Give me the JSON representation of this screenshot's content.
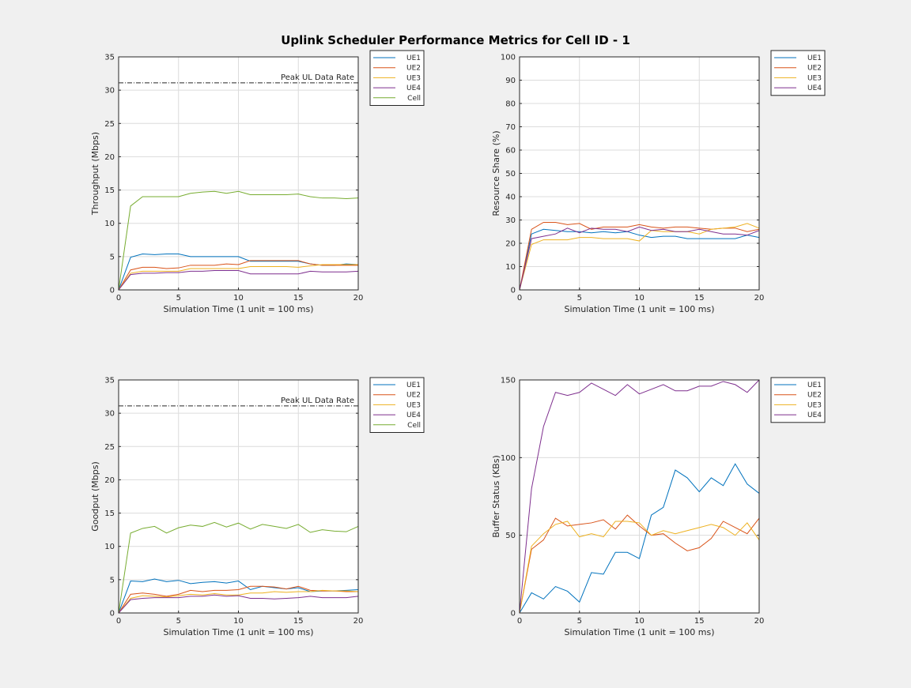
{
  "figure_title": "Uplink Scheduler Performance Metrics for Cell ID - 1",
  "colors": {
    "UE1": "#0072BD",
    "UE2": "#D95319",
    "UE3": "#EDB120",
    "UE4": "#7E2F8E",
    "Cell": "#77AC30",
    "background": "#f0f0f0"
  },
  "chart_data": [
    {
      "type": "line",
      "id": "throughput",
      "title": "",
      "xlabel": "Simulation Time (1 unit = 100 ms)",
      "ylabel": "Throughput (Mbps)",
      "xlim": [
        0,
        20
      ],
      "ylim": [
        0,
        35
      ],
      "xticks": [
        0,
        5,
        10,
        15,
        20
      ],
      "yticks": [
        0,
        5,
        10,
        15,
        20,
        25,
        30,
        35
      ],
      "grid": true,
      "legend_placement": "outside-top-right",
      "reference_line": {
        "label": "Peak UL Data Rate",
        "value": 31.1,
        "style": "dash-dot"
      },
      "x": [
        0,
        1,
        2,
        3,
        4,
        5,
        6,
        7,
        8,
        9,
        10,
        11,
        12,
        13,
        14,
        15,
        16,
        17,
        18,
        19,
        20
      ],
      "series": [
        {
          "name": "UE1",
          "values": [
            0,
            4.9,
            5.4,
            5.3,
            5.4,
            5.4,
            5,
            5,
            5,
            5,
            5,
            4.3,
            4.3,
            4.3,
            4.3,
            4.3,
            3.9,
            3.7,
            3.7,
            3.9,
            3.8
          ]
        },
        {
          "name": "UE2",
          "values": [
            0,
            3,
            3.4,
            3.4,
            3.2,
            3.3,
            3.7,
            3.7,
            3.7,
            3.9,
            3.8,
            4.4,
            4.4,
            4.4,
            4.4,
            4.4,
            3.9,
            3.7,
            3.7,
            3.7,
            3.7
          ]
        },
        {
          "name": "UE3",
          "values": [
            0,
            2.5,
            2.8,
            2.8,
            2.8,
            2.8,
            3.2,
            3.2,
            3.2,
            3.2,
            3.2,
            3.5,
            3.5,
            3.5,
            3.5,
            3.4,
            3.6,
            3.8,
            3.8,
            3.8,
            3.8
          ]
        },
        {
          "name": "UE4",
          "values": [
            0,
            2.3,
            2.5,
            2.5,
            2.6,
            2.6,
            2.8,
            2.8,
            2.9,
            2.9,
            2.9,
            2.4,
            2.4,
            2.4,
            2.4,
            2.4,
            2.8,
            2.7,
            2.7,
            2.7,
            2.8
          ]
        },
        {
          "name": "Cell",
          "values": [
            0,
            12.6,
            14,
            14,
            14,
            14,
            14.5,
            14.7,
            14.8,
            14.5,
            14.8,
            14.3,
            14.3,
            14.3,
            14.3,
            14.4,
            14,
            13.8,
            13.8,
            13.7,
            13.8
          ]
        }
      ]
    },
    {
      "type": "line",
      "id": "resource_share",
      "title": "",
      "xlabel": "Simulation Time (1 unit = 100 ms)",
      "ylabel": "Resource Share (%)",
      "xlim": [
        0,
        20
      ],
      "ylim": [
        0,
        100
      ],
      "xticks": [
        0,
        5,
        10,
        15,
        20
      ],
      "yticks": [
        0,
        10,
        20,
        30,
        40,
        50,
        60,
        70,
        80,
        90,
        100
      ],
      "grid": true,
      "legend_placement": "outside-top-right",
      "x": [
        0,
        1,
        2,
        3,
        4,
        5,
        6,
        7,
        8,
        9,
        10,
        11,
        12,
        13,
        14,
        15,
        16,
        17,
        18,
        19,
        20
      ],
      "series": [
        {
          "name": "UE1",
          "values": [
            0,
            24,
            26,
            25.5,
            25,
            25,
            24.5,
            25,
            24.5,
            25,
            23.5,
            22.5,
            23,
            23,
            22,
            22,
            22,
            22,
            22,
            23.5,
            22.5
          ]
        },
        {
          "name": "UE2",
          "values": [
            0,
            26,
            29,
            29,
            28,
            28.5,
            26,
            27,
            27,
            27,
            28,
            27,
            26.5,
            27,
            27,
            26.5,
            26,
            26.5,
            26.5,
            25,
            26
          ]
        },
        {
          "name": "UE3",
          "values": [
            0,
            19.5,
            21.5,
            21.5,
            21.5,
            22.5,
            22.5,
            22,
            22,
            22,
            21,
            25.5,
            25,
            25,
            25,
            24,
            26,
            26.5,
            27,
            28.5,
            26.5
          ]
        },
        {
          "name": "UE4",
          "values": [
            0,
            22,
            23,
            24,
            26.5,
            24.5,
            26.5,
            26,
            26,
            25,
            27,
            25.5,
            26,
            25,
            25,
            26,
            25,
            24,
            24,
            23.5,
            25.5
          ]
        }
      ]
    },
    {
      "type": "line",
      "id": "goodput",
      "title": "",
      "xlabel": "Simulation Time (1 unit = 100 ms)",
      "ylabel": "Goodput (Mbps)",
      "xlim": [
        0,
        20
      ],
      "ylim": [
        0,
        35
      ],
      "xticks": [
        0,
        5,
        10,
        15,
        20
      ],
      "yticks": [
        0,
        5,
        10,
        15,
        20,
        25,
        30,
        35
      ],
      "grid": true,
      "legend_placement": "outside-top-right",
      "reference_line": {
        "label": "Peak UL Data Rate",
        "value": 31.1,
        "style": "dash-dot"
      },
      "x": [
        0,
        1,
        2,
        3,
        4,
        5,
        6,
        7,
        8,
        9,
        10,
        11,
        12,
        13,
        14,
        15,
        16,
        17,
        18,
        19,
        20
      ],
      "series": [
        {
          "name": "UE1",
          "values": [
            0,
            4.8,
            4.7,
            5.1,
            4.7,
            4.9,
            4.4,
            4.6,
            4.7,
            4.5,
            4.8,
            3.5,
            4,
            3.8,
            3.6,
            3.8,
            3.2,
            3.3,
            3.3,
            3.4,
            3.5
          ]
        },
        {
          "name": "UE2",
          "values": [
            0,
            2.8,
            3,
            2.8,
            2.5,
            2.8,
            3.4,
            3.2,
            3.4,
            3.4,
            3.5,
            4,
            4,
            3.9,
            3.6,
            4,
            3.4,
            3.3,
            3.3,
            3.2,
            3.2
          ]
        },
        {
          "name": "UE3",
          "values": [
            0,
            2.2,
            2.6,
            2.5,
            2.4,
            2.6,
            2.8,
            2.7,
            2.9,
            2.7,
            2.7,
            3,
            3,
            3.2,
            3.1,
            3.2,
            3.2,
            3.4,
            3.3,
            3.3,
            3.2
          ]
        },
        {
          "name": "UE4",
          "values": [
            0,
            2,
            2.2,
            2.3,
            2.3,
            2.3,
            2.5,
            2.5,
            2.7,
            2.5,
            2.6,
            2.2,
            2.2,
            2.1,
            2.2,
            2.3,
            2.5,
            2.3,
            2.3,
            2.3,
            2.5
          ]
        },
        {
          "name": "Cell",
          "values": [
            0,
            12,
            12.7,
            13,
            12,
            12.8,
            13.2,
            13,
            13.6,
            12.9,
            13.5,
            12.6,
            13.3,
            13,
            12.7,
            13.3,
            12.1,
            12.5,
            12.3,
            12.2,
            13
          ]
        }
      ]
    },
    {
      "type": "line",
      "id": "buffer_status",
      "title": "",
      "xlabel": "Simulation Time (1 unit = 100 ms)",
      "ylabel": "Buffer Status (KBs)",
      "xlim": [
        0,
        20
      ],
      "ylim": [
        0,
        150
      ],
      "xticks": [
        0,
        5,
        10,
        15,
        20
      ],
      "yticks": [
        0,
        50,
        100,
        150
      ],
      "grid": true,
      "legend_placement": "outside-top-right",
      "x": [
        0,
        1,
        2,
        3,
        4,
        5,
        6,
        7,
        8,
        9,
        10,
        11,
        12,
        13,
        14,
        15,
        16,
        17,
        18,
        19,
        20
      ],
      "series": [
        {
          "name": "UE1",
          "values": [
            0,
            13,
            9,
            17,
            14,
            7,
            26,
            25,
            39,
            39,
            35,
            63,
            68,
            92,
            87,
            78,
            87,
            82,
            96,
            83,
            77
          ]
        },
        {
          "name": "UE2",
          "values": [
            0,
            41,
            47,
            61,
            56,
            57,
            58,
            60,
            54,
            63,
            56,
            50,
            51,
            45,
            40,
            42,
            48,
            59,
            55,
            51,
            61
          ]
        },
        {
          "name": "UE3",
          "values": [
            0,
            43,
            51,
            57,
            59,
            49,
            51,
            49,
            59,
            59,
            58,
            50,
            53,
            51,
            53,
            55,
            57,
            55,
            50,
            58,
            47
          ]
        },
        {
          "name": "UE4",
          "values": [
            0,
            80,
            120,
            142,
            140,
            142,
            148,
            144,
            140,
            147,
            141,
            144,
            147,
            143,
            143,
            146,
            146,
            149,
            147,
            142,
            150
          ]
        }
      ]
    }
  ]
}
